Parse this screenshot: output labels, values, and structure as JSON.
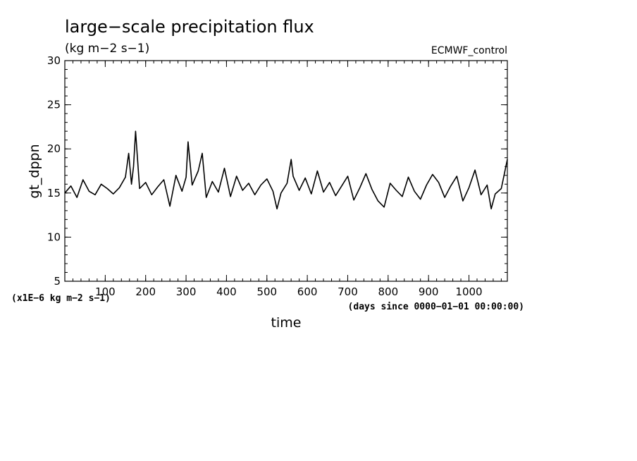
{
  "chart_data": {
    "type": "line",
    "title": "large−scale precipitation flux",
    "subtitle": "(kg m−2 s−1)",
    "run_label": "ECMWF_control",
    "xlabel": "time",
    "xunits": "(days since 0000−01−01 00:00:00)",
    "ylabel": "gt_dppn",
    "yscale_note": "(x1E−6 kg m−2 s−1)",
    "xlim": [
      0,
      1095
    ],
    "ylim": [
      5,
      30
    ],
    "xticks": [
      100,
      200,
      300,
      400,
      500,
      600,
      700,
      800,
      900,
      1000
    ],
    "yticks": [
      5,
      10,
      15,
      20,
      25,
      30
    ],
    "grid": false,
    "series": [
      {
        "x": [
          0,
          15,
          30,
          45,
          60,
          75,
          90,
          105,
          120,
          135,
          150,
          158,
          165,
          170,
          175,
          185,
          200,
          215,
          230,
          245,
          260,
          275,
          290,
          300,
          305,
          315,
          330,
          340,
          350,
          365,
          380,
          395,
          410,
          425,
          440,
          455,
          470,
          485,
          500,
          515,
          525,
          535,
          550,
          560,
          565,
          580,
          595,
          610,
          625,
          640,
          655,
          670,
          685,
          700,
          715,
          730,
          745,
          760,
          775,
          790,
          805,
          820,
          835,
          850,
          865,
          880,
          895,
          910,
          925,
          940,
          955,
          970,
          985,
          1000,
          1015,
          1030,
          1045,
          1055,
          1065,
          1080,
          1095
        ],
        "y": [
          15.0,
          15.8,
          14.5,
          16.5,
          15.2,
          14.8,
          16.0,
          15.5,
          14.9,
          15.6,
          16.8,
          19.5,
          16.0,
          18.0,
          22.0,
          15.5,
          16.2,
          14.8,
          15.7,
          16.5,
          13.5,
          17.0,
          15.2,
          16.8,
          20.8,
          15.9,
          17.5,
          19.5,
          14.5,
          16.3,
          15.1,
          17.8,
          14.6,
          16.9,
          15.3,
          16.1,
          14.8,
          15.9,
          16.6,
          15.2,
          13.2,
          15.0,
          16.1,
          18.8,
          16.9,
          15.3,
          16.7,
          14.9,
          17.5,
          15.1,
          16.2,
          14.7,
          15.8,
          16.9,
          14.2,
          15.6,
          17.2,
          15.4,
          14.1,
          13.4,
          16.1,
          15.3,
          14.6,
          16.8,
          15.2,
          14.3,
          15.9,
          17.1,
          16.2,
          14.5,
          15.8,
          16.9,
          14.1,
          15.6,
          17.6,
          14.8,
          15.9,
          13.2,
          14.9,
          15.5,
          18.8
        ]
      }
    ]
  }
}
